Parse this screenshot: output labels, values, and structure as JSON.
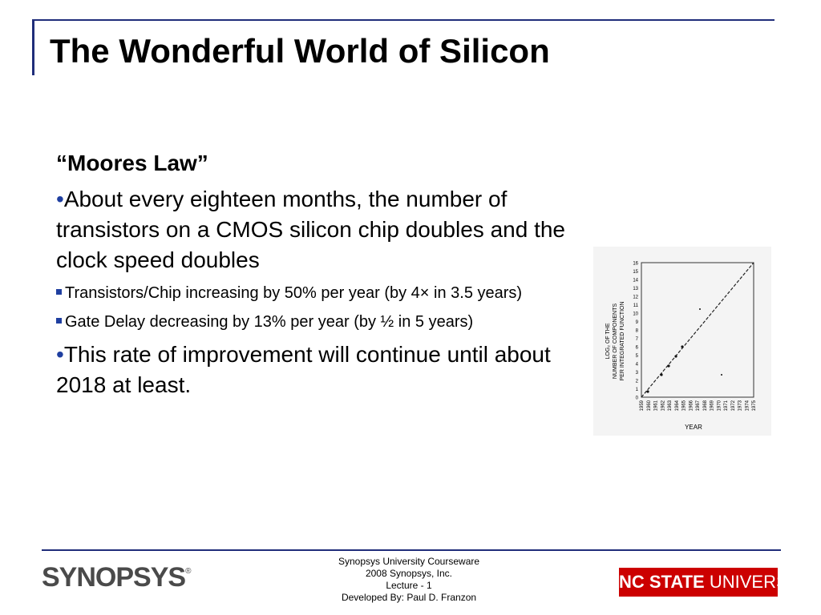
{
  "slide": {
    "title": "The Wonderful World of Silicon"
  },
  "content": {
    "heading": "“Moores Law”",
    "bullet1": "About every eighteen months, the number of transistors on a CMOS silicon chip doubles and the clock speed doubles",
    "sub1": "Transistors/Chip increasing by 50% per year (by 4× in 3.5 years)",
    "sub2": "Gate Delay decreasing by 13% per year (by ½ in 5 years)",
    "bullet2": "This rate of improvement will continue until about 2018 at least."
  },
  "graph": {
    "ylabel_line1": "LOG₂ OF THE",
    "ylabel_line2": "NUMBER OF COMPONENTS",
    "ylabel_line3": "PER INTEGRATED FUNCTION",
    "xlabel": "YEAR",
    "years": [
      "1959",
      "1960",
      "1961",
      "1962",
      "1963",
      "1964",
      "1965",
      "1966",
      "1967",
      "1968",
      "1969",
      "1970",
      "1971",
      "1972",
      "1973",
      "1974",
      "1975"
    ],
    "yticks": [
      "0",
      "1",
      "2",
      "3",
      "4",
      "5",
      "6",
      "7",
      "8",
      "9",
      "10",
      "11",
      "12",
      "13",
      "14",
      "15",
      "16"
    ]
  },
  "footer": {
    "brand": "SYNOPSYS",
    "brand_mark": "®",
    "line1": "Synopsys University Courseware",
    "line2": "2008 Synopsys, Inc.",
    "line3": "Lecture - 1",
    "line4": "Developed By: Paul D. Franzon",
    "ncsu_bold": "NC STATE",
    "ncsu_rest": " UNIVERSITY"
  }
}
